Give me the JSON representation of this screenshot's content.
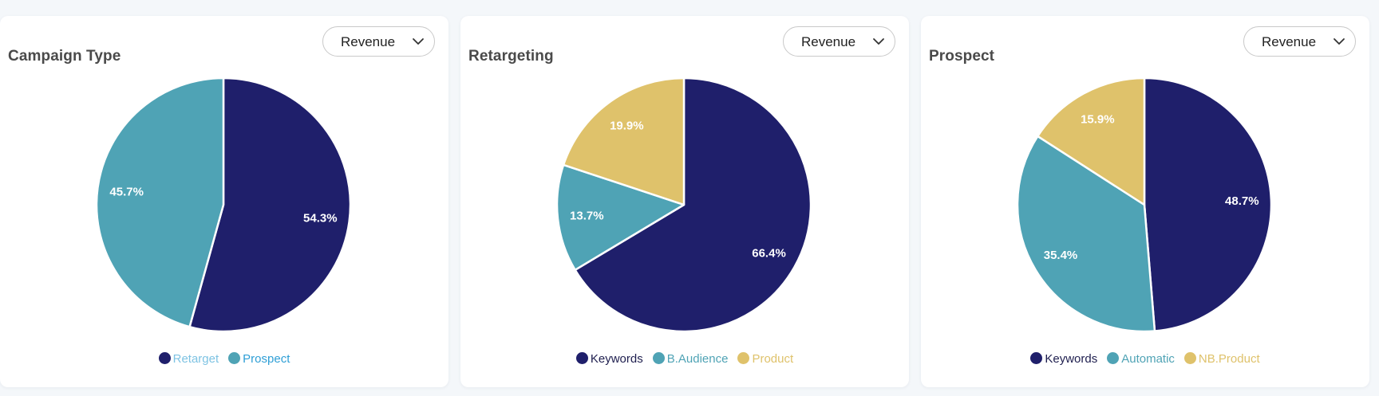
{
  "colors": {
    "navy": "#1f1f6b",
    "teal": "#4fa3b5",
    "gold": "#dfc26b",
    "title_text": "#4a4a4a",
    "legend_retarget_text": "#7ec3e3",
    "legend_prospect_text": "#2f9fd6",
    "legend_keywords_text": "#1f1f4f",
    "legend_teal_text": "#4fa3b5",
    "legend_gold_text": "#dfc26b"
  },
  "cards": [
    {
      "title": "Campaign Type",
      "dropdown": {
        "selected": "Revenue",
        "icon": "chevron-down-icon"
      },
      "legend": [
        {
          "label": "Retarget",
          "color": "#1f1f6b",
          "text_color": "#7ec3e3"
        },
        {
          "label": "Prospect",
          "color": "#4fa3b5",
          "text_color": "#2f9fd6"
        }
      ]
    },
    {
      "title": "Retargeting",
      "dropdown": {
        "selected": "Revenue",
        "icon": "chevron-down-icon"
      },
      "legend": [
        {
          "label": "Keywords",
          "color": "#1f1f6b",
          "text_color": "#1f1f4f"
        },
        {
          "label": "B.Audience",
          "color": "#4fa3b5",
          "text_color": "#4fa3b5"
        },
        {
          "label": "Product",
          "color": "#dfc26b",
          "text_color": "#dfc26b"
        }
      ]
    },
    {
      "title": "Prospect",
      "dropdown": {
        "selected": "Revenue",
        "icon": "chevron-down-icon"
      },
      "legend": [
        {
          "label": "Keywords",
          "color": "#1f1f6b",
          "text_color": "#1f1f4f"
        },
        {
          "label": "Automatic",
          "color": "#4fa3b5",
          "text_color": "#4fa3b5"
        },
        {
          "label": "NB.Product",
          "color": "#dfc26b",
          "text_color": "#dfc26b"
        }
      ]
    }
  ],
  "chart_data": [
    {
      "type": "pie",
      "title": "Campaign Type",
      "categories": [
        "Retarget",
        "Prospect"
      ],
      "values": [
        54.3,
        45.7
      ],
      "labels": [
        "54.3%",
        "45.7%"
      ],
      "colors": [
        "#1f1f6b",
        "#4fa3b5"
      ],
      "legend_position": "bottom"
    },
    {
      "type": "pie",
      "title": "Retargeting",
      "categories": [
        "Keywords",
        "B.Audience",
        "Product"
      ],
      "values": [
        66.4,
        13.7,
        19.9
      ],
      "labels": [
        "66.4%",
        "13.7%",
        "19.9%"
      ],
      "colors": [
        "#1f1f6b",
        "#4fa3b5",
        "#dfc26b"
      ],
      "legend_position": "bottom"
    },
    {
      "type": "pie",
      "title": "Prospect",
      "categories": [
        "Keywords",
        "Automatic",
        "NB.Product"
      ],
      "values": [
        48.7,
        35.4,
        15.9
      ],
      "labels": [
        "48.7%",
        "35.4%",
        "15.9%"
      ],
      "colors": [
        "#1f1f6b",
        "#4fa3b5",
        "#dfc26b"
      ],
      "legend_position": "bottom"
    }
  ]
}
